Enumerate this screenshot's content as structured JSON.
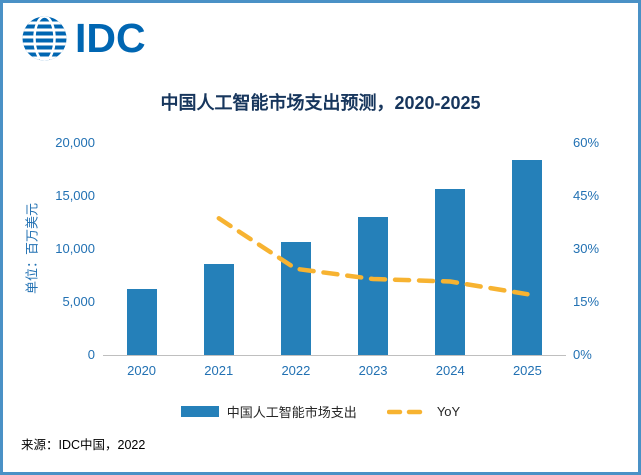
{
  "logo": {
    "text": "IDC",
    "color": "#0066b2",
    "globe_icon": "idc-globe-icon"
  },
  "chart_data": {
    "type": "bar",
    "title": "中国人工智能市场支出预测，2020-2025",
    "ylabel": "单位：百万美元",
    "categories": [
      "2020",
      "2021",
      "2022",
      "2023",
      "2024",
      "2025"
    ],
    "series": [
      {
        "name": "中国人工智能市场支出",
        "type": "bar",
        "axis": "left",
        "color": "#2580b9",
        "values": [
          6200,
          8600,
          10700,
          13000,
          15700,
          18400
        ]
      },
      {
        "name": "YoY",
        "type": "line",
        "axis": "right",
        "color": "#f7b331",
        "dashed": true,
        "values": [
          null,
          38.7,
          24.4,
          21.5,
          20.8,
          17.2
        ]
      }
    ],
    "left_axis": {
      "min": 0,
      "max": 20000,
      "ticks": [
        0,
        5000,
        10000,
        15000,
        20000
      ],
      "tick_labels": [
        "0",
        "5,000",
        "10,000",
        "15,000",
        "20,000"
      ]
    },
    "right_axis": {
      "min": 0,
      "max": 60,
      "ticks": [
        0,
        15,
        30,
        45,
        60
      ],
      "tick_labels": [
        "0%",
        "15%",
        "30%",
        "45%",
        "60%"
      ]
    },
    "grid": false,
    "legend_position": "bottom"
  },
  "footer": {
    "source": "来源：IDC中国，2022"
  }
}
